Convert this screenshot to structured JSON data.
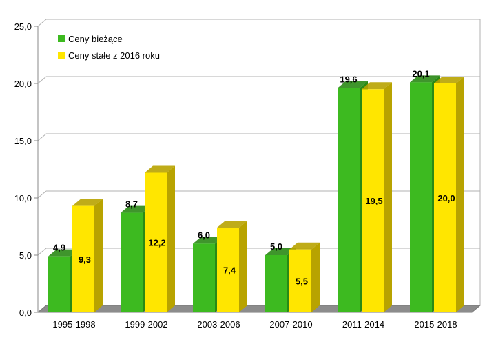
{
  "chart_data": {
    "type": "bar",
    "categories": [
      "1995-1998",
      "1999-2002",
      "2003-2006",
      "2007-2010",
      "2011-2014",
      "2015-2018"
    ],
    "series": [
      {
        "name": "Ceny bieżące",
        "values": [
          4.9,
          8.7,
          6.0,
          5.0,
          19.6,
          20.1
        ],
        "labels": [
          "4,9",
          "8,7",
          "6,0",
          "5,0",
          "19,6",
          "20,1"
        ],
        "color": "#3dba20",
        "side_color": "#2a8a15"
      },
      {
        "name": "Ceny stałe z 2016 roku",
        "values": [
          9.3,
          12.2,
          7.4,
          5.5,
          19.5,
          20.0
        ],
        "labels": [
          "9,3",
          "12,2",
          "7,4",
          "5,5",
          "19,5",
          "20,0"
        ],
        "color": "#ffe600",
        "side_color": "#b8a300"
      }
    ],
    "ylim": [
      0,
      25
    ],
    "yticks": [
      "0,0",
      "5,0",
      "10,0",
      "15,0",
      "20,0",
      "25,0"
    ],
    "grid": true,
    "legend": "top-left",
    "xlabel": "",
    "ylabel": ""
  }
}
